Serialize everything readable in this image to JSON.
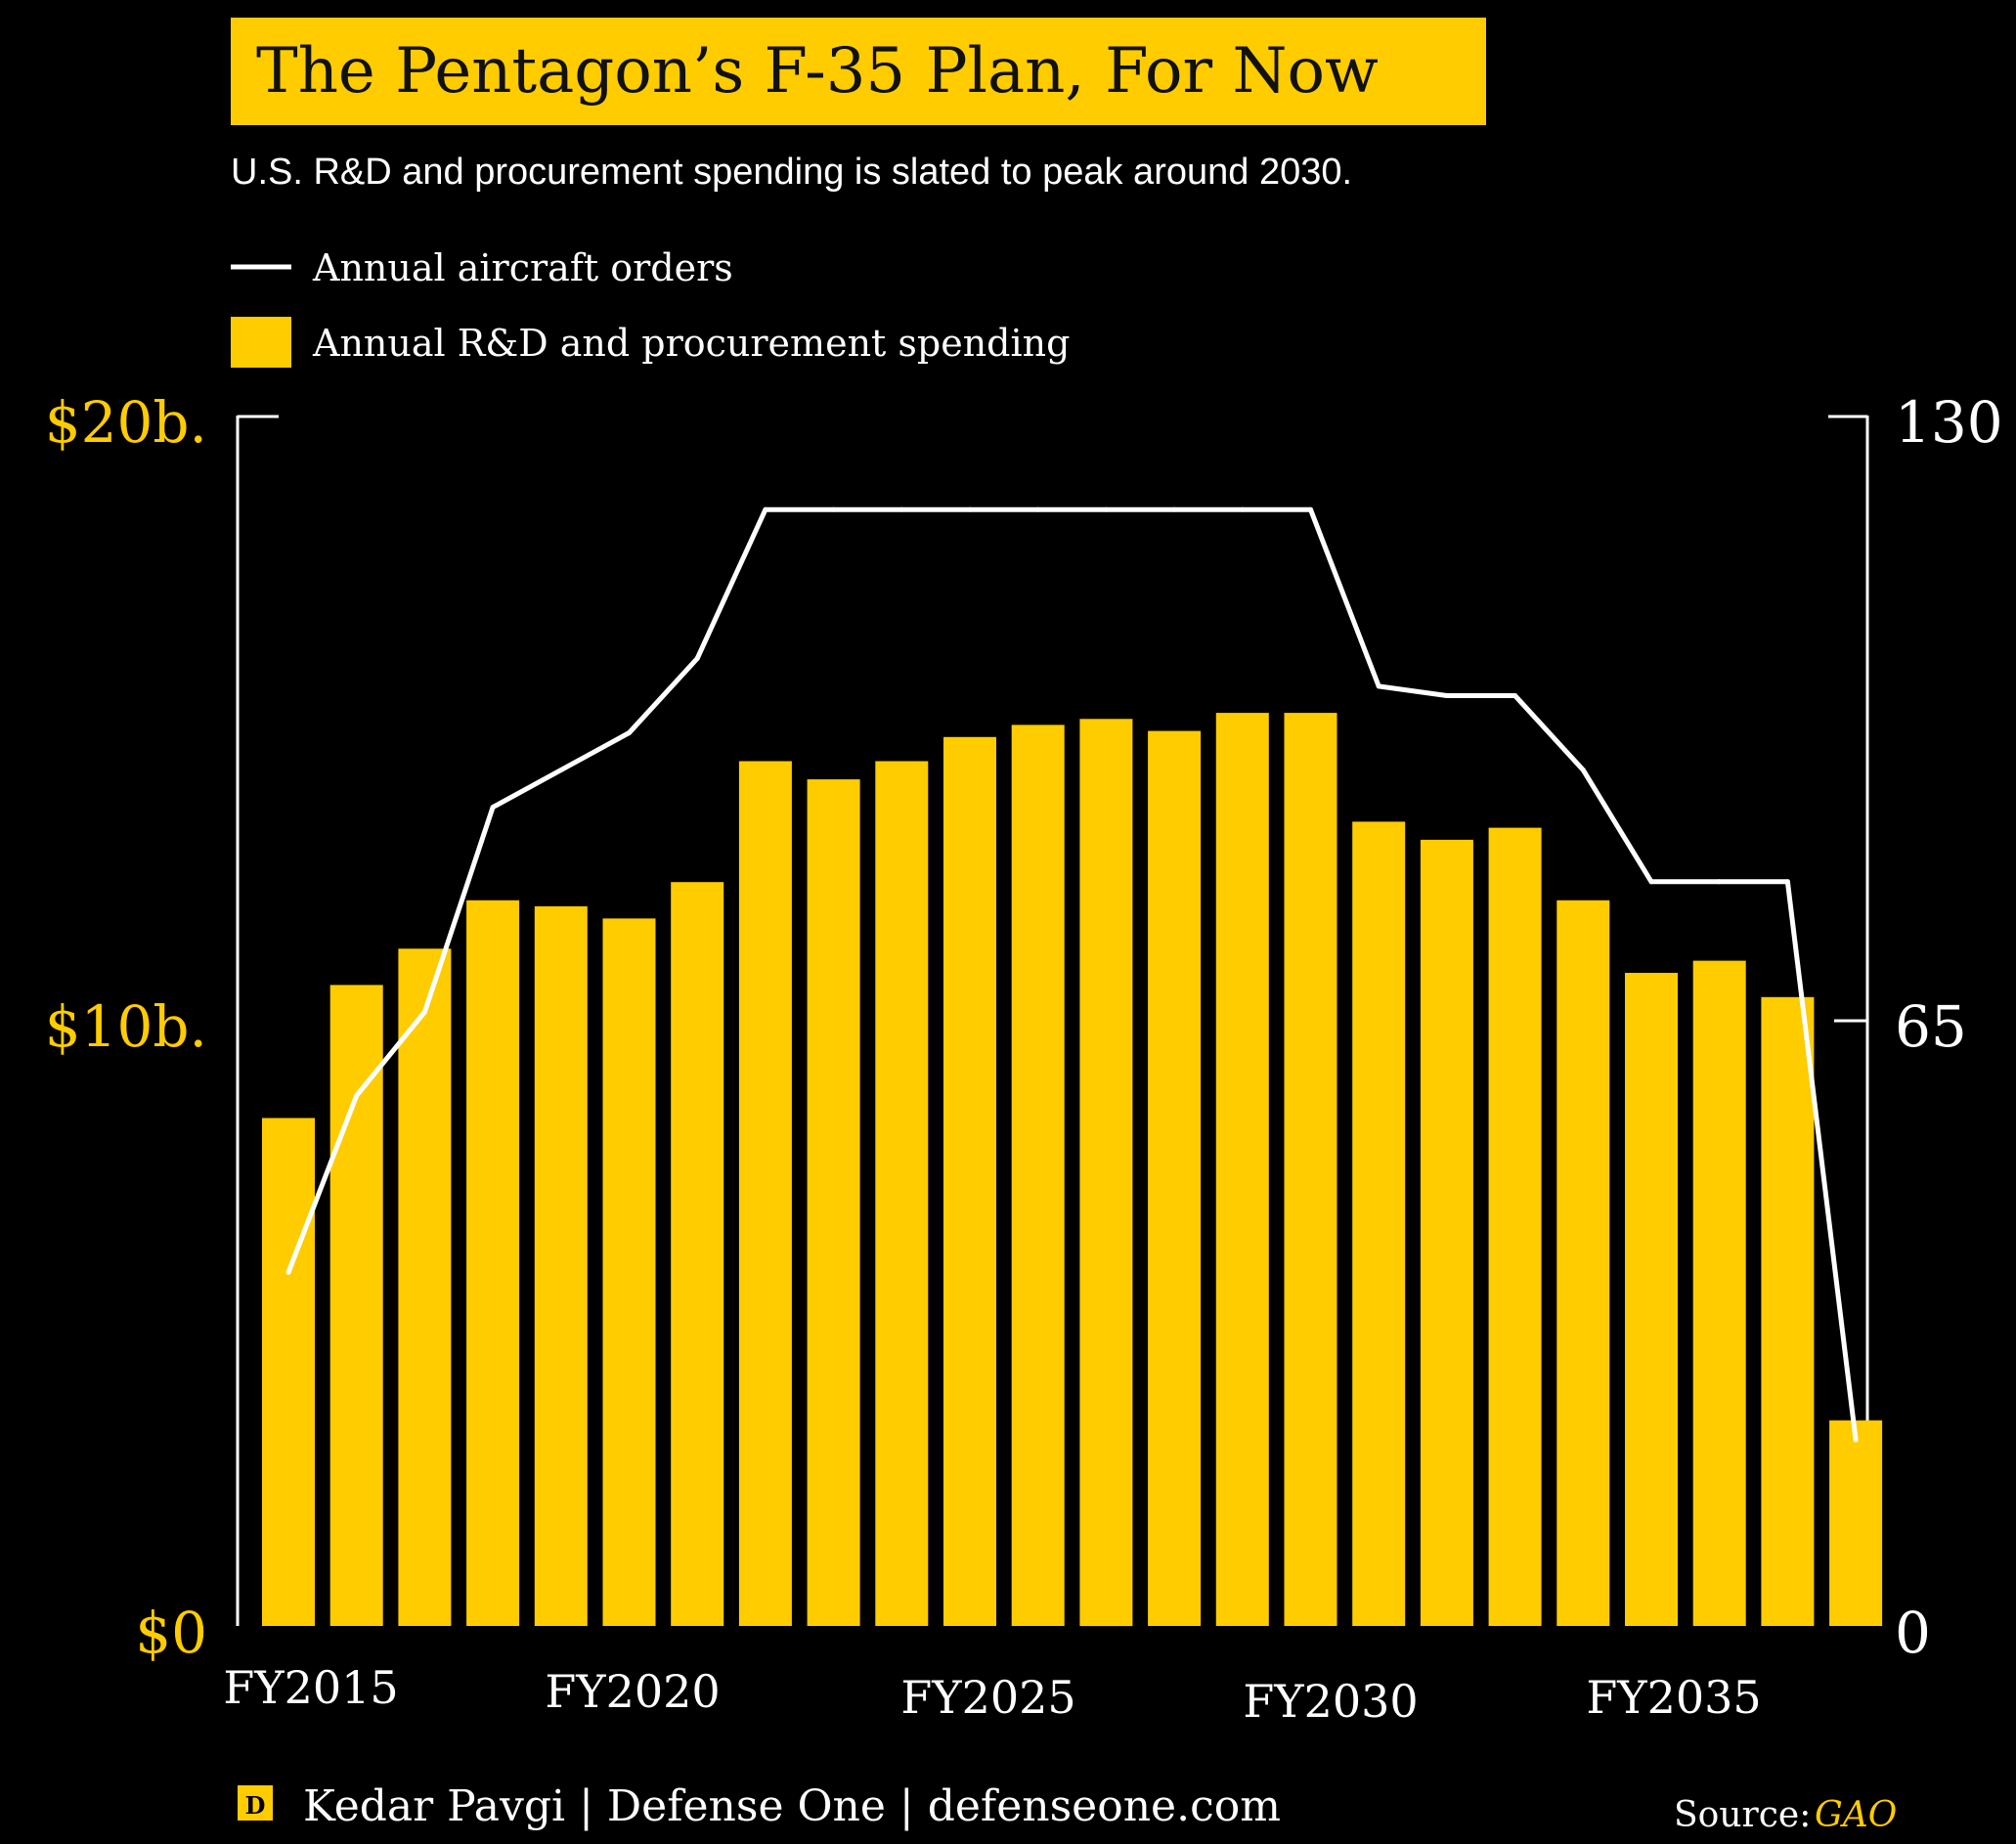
{
  "title": "The Pentagon’s F-35 Plan, For Now",
  "subtitle": "U.S. R&D and procurement spending is slated to peak around 2030.",
  "legend": {
    "line_label": "Annual aircraft orders",
    "bar_label": "Annual R&D and procurement spending"
  },
  "footer": {
    "logo_letter": "D",
    "credit": "Kedar Pavgi | Defense One | defenseone.com",
    "source_label": "Source:",
    "source_value": "GAO"
  },
  "colors": {
    "background": "#000000",
    "accent": "#FFCC00",
    "line": "#FFFFFF",
    "text": "#FFFFFF"
  },
  "chart_data": {
    "type": "bar",
    "title": "The Pentagon’s F-35 Plan, For Now",
    "subtitle": "U.S. R&D and procurement spending is slated to peak around 2030.",
    "x_tick_labels": [
      "FY2015",
      "FY2020",
      "FY2025",
      "FY2030",
      "FY2035"
    ],
    "x": [
      2015,
      2016,
      2017,
      2018,
      2019,
      2020,
      2021,
      2022,
      2023,
      2024,
      2025,
      2026,
      2027,
      2028,
      2029,
      2030,
      2031,
      2032,
      2033,
      2034,
      2035,
      2036,
      2037,
      2038
    ],
    "series": [
      {
        "name": "Annual R&D and procurement spending",
        "type": "bar",
        "axis": "left",
        "unit": "$ billions",
        "values": [
          8.4,
          10.6,
          11.2,
          12.0,
          11.9,
          11.7,
          12.3,
          14.3,
          14.0,
          14.3,
          14.7,
          14.9,
          15.0,
          14.8,
          15.1,
          15.1,
          13.3,
          13.0,
          13.2,
          12.0,
          10.8,
          11.0,
          10.4,
          3.4
        ]
      },
      {
        "name": "Annual aircraft orders",
        "type": "line",
        "axis": "right",
        "unit": "aircraft",
        "values": [
          38,
          57,
          66,
          88,
          92,
          96,
          104,
          120,
          120,
          120,
          120,
          120,
          120,
          120,
          120,
          120,
          101,
          100,
          100,
          92,
          80,
          80,
          80,
          20
        ]
      }
    ],
    "y_left": {
      "ticks": [
        0,
        10,
        20
      ],
      "tick_labels": [
        "$0",
        "$10b.",
        "$20b."
      ],
      "ylim": [
        0,
        20
      ]
    },
    "y_right": {
      "ticks": [
        0,
        65,
        130
      ],
      "tick_labels": [
        "0",
        "65",
        "130"
      ],
      "ylim": [
        0,
        130
      ]
    },
    "legend_position": "top-left",
    "grid": false
  }
}
